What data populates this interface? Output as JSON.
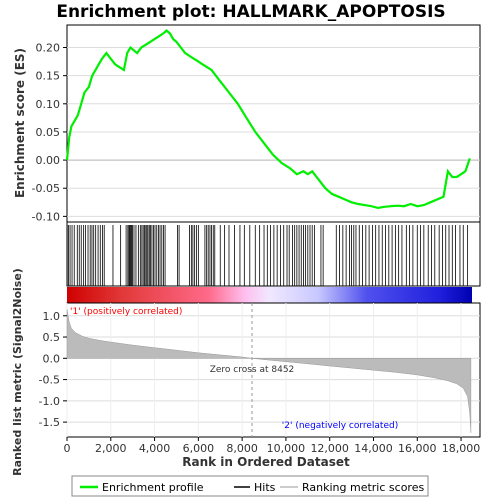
{
  "title": "Enrichment plot: HALLMARK_APOPTOSIS",
  "legend": {
    "profile": "Enrichment profile",
    "hits": "Hits",
    "ranking": "Ranking metric scores"
  },
  "colors": {
    "profile": "#00ee00",
    "hits": "#000000",
    "ranking": "#bbbbbb",
    "positive": "#ff0000",
    "negative": "#0000ff"
  },
  "chart_data": [
    {
      "type": "line",
      "ylabel": "Enrichment score (ES)",
      "xlim": [
        0,
        18500
      ],
      "ylim": [
        -0.11,
        0.24
      ],
      "yticks": [
        "0.20",
        "0.15",
        "0.10",
        "0.05",
        "0.00",
        "-0.05",
        "-0.10"
      ],
      "ytick_values": [
        0.2,
        0.15,
        0.1,
        0.05,
        0.0,
        -0.05,
        -0.1
      ],
      "grid": true,
      "series": [
        {
          "name": "Enrichment profile",
          "x": [
            0,
            100,
            200,
            350,
            500,
            650,
            800,
            1000,
            1150,
            1300,
            1450,
            1600,
            1800,
            2000,
            2200,
            2400,
            2600,
            2750,
            2900,
            3050,
            3200,
            3400,
            3600,
            3800,
            4000,
            4200,
            4400,
            4550,
            4700,
            4850,
            5000,
            5200,
            5400,
            5600,
            5800,
            6000,
            6200,
            6400,
            6600,
            6800,
            7000,
            7400,
            7800,
            8200,
            8600,
            9000,
            9400,
            9800,
            10200,
            10500,
            10800,
            11000,
            11200,
            11500,
            11800,
            12100,
            12400,
            12700,
            13000,
            13300,
            13600,
            13900,
            14200,
            14500,
            14800,
            15100,
            15400,
            15700,
            16000,
            16300,
            16600,
            16900,
            17200,
            17400,
            17600,
            17800,
            18000,
            18200,
            18400
          ],
          "y": [
            0.0,
            0.04,
            0.06,
            0.07,
            0.08,
            0.1,
            0.12,
            0.13,
            0.15,
            0.16,
            0.17,
            0.18,
            0.19,
            0.18,
            0.17,
            0.165,
            0.16,
            0.19,
            0.2,
            0.195,
            0.19,
            0.2,
            0.205,
            0.21,
            0.215,
            0.22,
            0.225,
            0.23,
            0.225,
            0.215,
            0.21,
            0.2,
            0.19,
            0.185,
            0.18,
            0.175,
            0.17,
            0.165,
            0.16,
            0.15,
            0.14,
            0.12,
            0.1,
            0.075,
            0.05,
            0.03,
            0.01,
            -0.005,
            -0.015,
            -0.025,
            -0.02,
            -0.025,
            -0.02,
            -0.035,
            -0.05,
            -0.06,
            -0.065,
            -0.07,
            -0.075,
            -0.078,
            -0.08,
            -0.082,
            -0.085,
            -0.083,
            -0.082,
            -0.081,
            -0.082,
            -0.078,
            -0.082,
            -0.08,
            -0.075,
            -0.07,
            -0.065,
            -0.02,
            -0.03,
            -0.03,
            -0.025,
            -0.02,
            0.003
          ]
        }
      ]
    },
    {
      "type": "line",
      "xlabel": "Rank in Ordered Dataset",
      "ylabel": "Ranked list metric (Signal2Noise)",
      "xlim": [
        0,
        18500
      ],
      "ylim": [
        -1.85,
        1.3
      ],
      "xticks": [
        "0",
        "2,000",
        "4,000",
        "6,000",
        "8,000",
        "10,000",
        "12,000",
        "14,000",
        "16,000",
        "18,000"
      ],
      "xtick_values": [
        0,
        2000,
        4000,
        6000,
        8000,
        10000,
        12000,
        14000,
        16000,
        18000
      ],
      "yticks": [
        "1.0",
        "0.5",
        "0.0",
        "-0.5",
        "-1.0",
        "-1.5"
      ],
      "ytick_values": [
        1.0,
        0.5,
        0.0,
        -0.5,
        -1.0,
        -1.5
      ],
      "grid": true,
      "zero_cross": 8452,
      "zero_cross_label": "Zero cross at 8452",
      "positive_label": "'1' (positively correlated)",
      "negative_label": "'2' (negatively correlated)",
      "series": [
        {
          "name": "Ranking metric scores",
          "x": [
            0,
            100,
            200,
            400,
            700,
            1000,
            1500,
            2000,
            3000,
            4000,
            5000,
            6000,
            7000,
            8000,
            8452,
            9000,
            10000,
            11000,
            12000,
            13000,
            14000,
            15000,
            16000,
            16800,
            17400,
            17800,
            18100,
            18300,
            18400,
            18450
          ],
          "y": [
            1.15,
            0.85,
            0.7,
            0.6,
            0.52,
            0.47,
            0.42,
            0.38,
            0.31,
            0.25,
            0.19,
            0.13,
            0.08,
            0.03,
            0.0,
            -0.03,
            -0.08,
            -0.13,
            -0.18,
            -0.23,
            -0.28,
            -0.33,
            -0.39,
            -0.46,
            -0.53,
            -0.6,
            -0.7,
            -0.9,
            -1.3,
            -1.75
          ]
        }
      ]
    }
  ],
  "hits": [
    10,
    70,
    140,
    230,
    330,
    470,
    560,
    650,
    760,
    850,
    960,
    1060,
    1140,
    1220,
    1310,
    1420,
    1520,
    1620,
    1700,
    2100,
    2450,
    2700,
    2780,
    2830,
    2870,
    2910,
    2950,
    2990,
    3060,
    3150,
    3260,
    3350,
    3420,
    3480,
    3540,
    3600,
    3650,
    3700,
    3760,
    3820,
    3880,
    3950,
    4020,
    4100,
    4180,
    4250,
    4330,
    4410,
    4480,
    5050,
    5120,
    5600,
    5680,
    5750,
    5830,
    5910,
    6000,
    6300,
    6380,
    6450,
    6530,
    6600,
    6680,
    6750,
    7000,
    7200,
    7400,
    7650,
    7900,
    8100,
    8350,
    8600,
    8800,
    9000,
    9150,
    9300,
    9450,
    9600,
    9750,
    9900,
    10050,
    10150,
    10300,
    10400,
    10500,
    10600,
    10700,
    10800,
    10900,
    11000,
    11100,
    11200,
    11300,
    11600,
    11700,
    12300,
    12450,
    12600,
    12750,
    12900,
    13000,
    13100,
    13200,
    13350,
    13500,
    13650,
    13800,
    13950,
    14100,
    14250,
    14400,
    14550,
    14700,
    14850,
    15000,
    15150,
    15300,
    15500,
    15650,
    15800,
    16000,
    16150,
    16300,
    16500,
    16650,
    16800,
    17000,
    17150,
    17300,
    17450,
    17600,
    17750,
    17950,
    18100,
    18300
  ]
}
